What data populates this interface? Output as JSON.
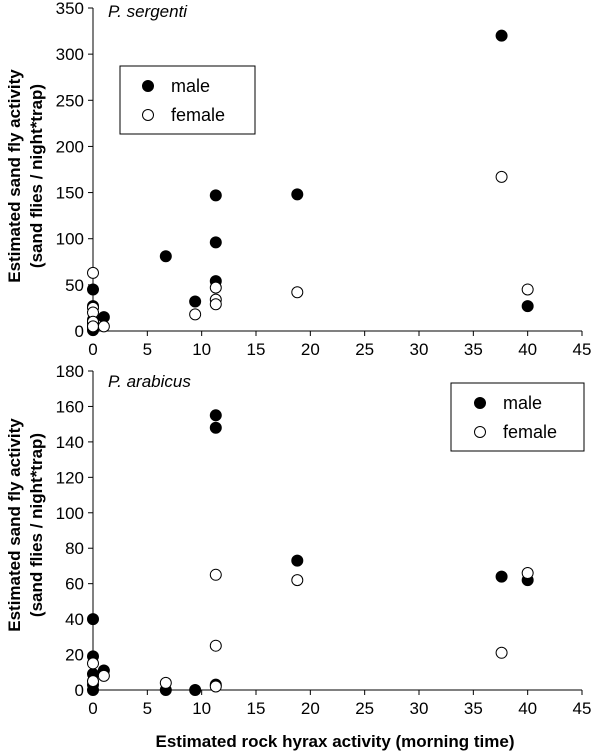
{
  "xlabel": "Estimated rock hyrax activity (morning time)",
  "chart_data": [
    {
      "type": "scatter",
      "title": "P. sergenti",
      "ylabel_line1": "Estimated sand fly activity",
      "ylabel_line2": "(sand flies / night*trap)",
      "xlim": [
        0,
        45
      ],
      "ylim": [
        0,
        350
      ],
      "xticks": [
        0,
        5,
        10,
        15,
        20,
        25,
        30,
        35,
        40,
        45
      ],
      "yticks": [
        0,
        50,
        100,
        150,
        200,
        250,
        300,
        350
      ],
      "legend_position": "upper-left",
      "series": [
        {
          "name": "male",
          "marker": "filled",
          "points": [
            [
              0,
              45
            ],
            [
              0,
              27
            ],
            [
              0,
              12
            ],
            [
              0,
              8
            ],
            [
              0,
              4
            ],
            [
              0,
              1
            ],
            [
              1,
              15
            ],
            [
              6.7,
              81
            ],
            [
              9.4,
              32
            ],
            [
              11.3,
              147
            ],
            [
              11.3,
              96
            ],
            [
              11.3,
              54
            ],
            [
              18.8,
              148
            ],
            [
              37.6,
              320
            ],
            [
              40,
              27
            ]
          ]
        },
        {
          "name": "female",
          "marker": "open",
          "points": [
            [
              0,
              63
            ],
            [
              0,
              25
            ],
            [
              0,
              20
            ],
            [
              0,
              10
            ],
            [
              0,
              5
            ],
            [
              1,
              5
            ],
            [
              9.4,
              18
            ],
            [
              11.3,
              47
            ],
            [
              11.3,
              34
            ],
            [
              11.3,
              29
            ],
            [
              18.8,
              42
            ],
            [
              37.6,
              167
            ],
            [
              40,
              45
            ]
          ]
        }
      ]
    },
    {
      "type": "scatter",
      "title": "P. arabicus",
      "ylabel_line1": "Estimated sand fly activity",
      "ylabel_line2": "(sand flies / night*trap)",
      "xlim": [
        0,
        45
      ],
      "ylim": [
        0,
        180
      ],
      "xticks": [
        0,
        5,
        10,
        15,
        20,
        25,
        30,
        35,
        40,
        45
      ],
      "yticks": [
        0,
        20,
        40,
        60,
        80,
        100,
        120,
        140,
        160,
        180
      ],
      "legend_position": "upper-right",
      "series": [
        {
          "name": "male",
          "marker": "filled",
          "points": [
            [
              0,
              40
            ],
            [
              0,
              19
            ],
            [
              0,
              9
            ],
            [
              0,
              3
            ],
            [
              0,
              0
            ],
            [
              1,
              11
            ],
            [
              6.7,
              0
            ],
            [
              9.4,
              0
            ],
            [
              11.3,
              155
            ],
            [
              11.3,
              148
            ],
            [
              11.3,
              3
            ],
            [
              18.8,
              73
            ],
            [
              37.6,
              64
            ],
            [
              40,
              62
            ]
          ]
        },
        {
          "name": "female",
          "marker": "open",
          "points": [
            [
              0,
              15
            ],
            [
              0,
              5
            ],
            [
              1,
              8
            ],
            [
              6.7,
              4
            ],
            [
              11.3,
              65
            ],
            [
              11.3,
              25
            ],
            [
              11.3,
              2
            ],
            [
              18.8,
              62
            ],
            [
              37.6,
              21
            ],
            [
              40,
              66
            ]
          ]
        }
      ]
    }
  ]
}
